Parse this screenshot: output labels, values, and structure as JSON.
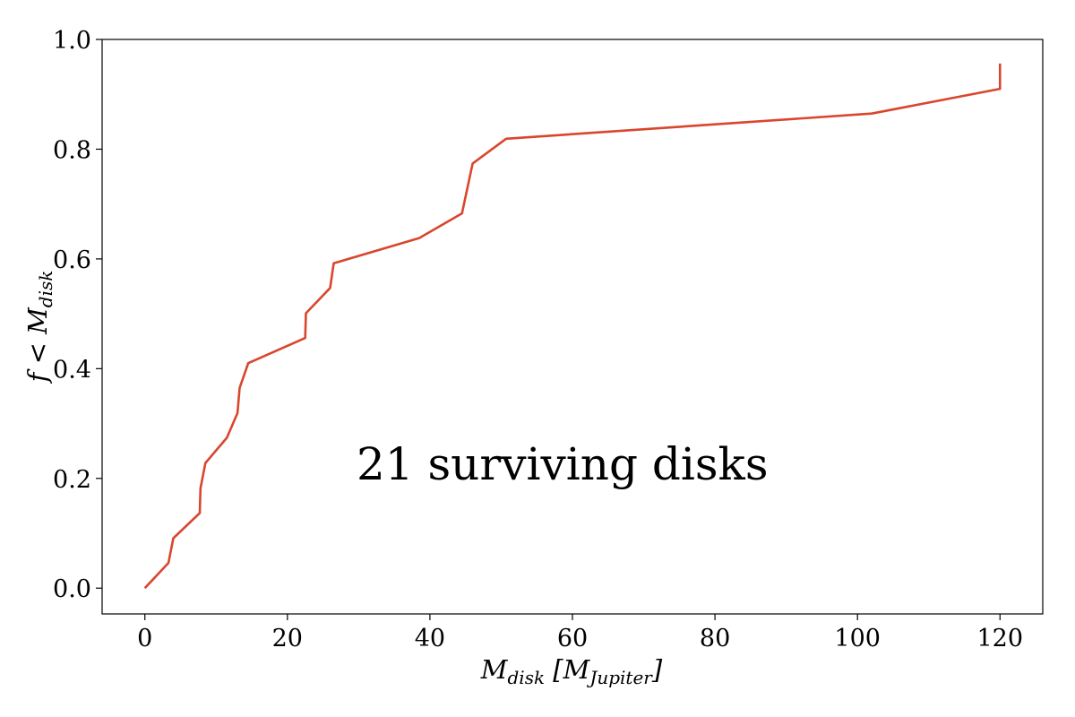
{
  "chart_data": {
    "type": "line",
    "title": "",
    "xlabel": "M_disk [M_Jupiter]",
    "ylabel": "f < M_disk",
    "xlim": [
      -6,
      126
    ],
    "ylim": [
      -0.047,
      1.0
    ],
    "xticks": [
      0,
      20,
      40,
      60,
      80,
      100,
      120
    ],
    "yticks": [
      0.0,
      0.2,
      0.4,
      0.6,
      0.8,
      1.0
    ],
    "xtick_labels": [
      "0",
      "20",
      "40",
      "60",
      "80",
      "100",
      "120"
    ],
    "ytick_labels": [
      "0.0",
      "0.2",
      "0.4",
      "0.6",
      "0.8",
      "1.0"
    ],
    "annotation": "21 surviving disks",
    "grid": false,
    "series": [
      {
        "color": "#d9462e",
        "x": [
          0.0,
          3.3,
          4.0,
          7.7,
          7.8,
          8.5,
          11.5,
          13.0,
          13.3,
          14.5,
          22.5,
          22.6,
          26.0,
          26.5,
          38.5,
          44.5,
          46.0,
          50.7,
          102.0,
          120.0,
          120.0
        ],
        "y": [
          0.0,
          0.046,
          0.091,
          0.137,
          0.182,
          0.228,
          0.274,
          0.319,
          0.365,
          0.41,
          0.456,
          0.501,
          0.547,
          0.592,
          0.638,
          0.683,
          0.774,
          0.819,
          0.865,
          0.91,
          0.956
        ]
      }
    ]
  }
}
